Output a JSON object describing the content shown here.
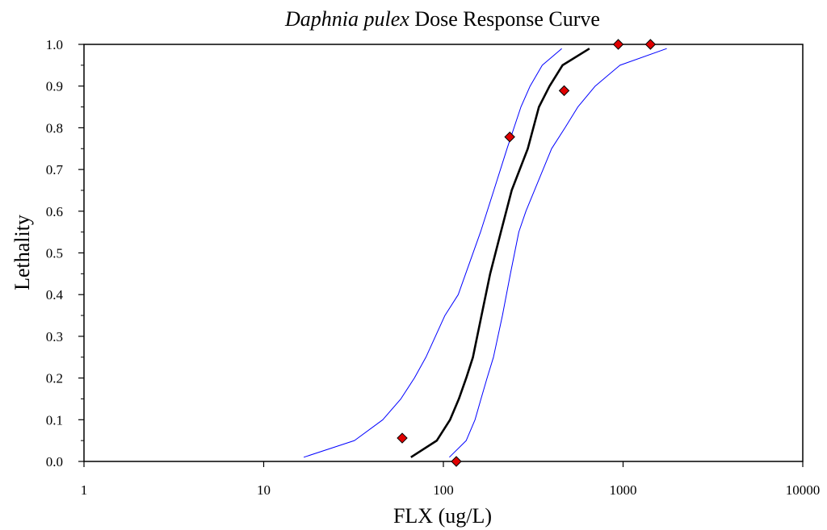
{
  "chart_data": {
    "type": "line",
    "title_italic": "Daphnia pulex",
    "title_rest": " Dose Response Curve",
    "xlabel": "FLX (ug/L)",
    "ylabel": "Lethality",
    "xscale": "log",
    "xlim": [
      1,
      10000
    ],
    "ylim": [
      0.0,
      1.0
    ],
    "grid": false,
    "x_tick_labels": [
      "1",
      "10",
      "100",
      "1000",
      "10000"
    ],
    "x_tick_values": [
      1,
      10,
      100,
      1000,
      10000
    ],
    "y_tick_labels": [
      "0.0",
      "0.1",
      "0.2",
      "0.3",
      "0.4",
      "0.5",
      "0.6",
      "0.7",
      "0.8",
      "0.9",
      "1.0"
    ],
    "y_tick_values": [
      0.0,
      0.1,
      0.2,
      0.3,
      0.4,
      0.5,
      0.6,
      0.7,
      0.8,
      0.9,
      1.0
    ],
    "colors": {
      "fit": "#000000",
      "confidence": "#0000ff",
      "marker_fill": "#e00000",
      "marker_stroke": "#000000"
    },
    "series": [
      {
        "role": "lower-confidence",
        "points": [
          [
            16.7,
            0.01
          ],
          [
            32,
            0.05
          ],
          [
            46,
            0.1
          ],
          [
            58,
            0.15
          ],
          [
            69,
            0.2
          ],
          [
            80,
            0.25
          ],
          [
            102,
            0.35
          ],
          [
            121,
            0.4
          ],
          [
            161,
            0.55
          ],
          [
            191,
            0.65
          ],
          [
            226,
            0.75
          ],
          [
            270,
            0.85
          ],
          [
            304,
            0.9
          ],
          [
            355,
            0.95
          ],
          [
            456,
            0.99
          ]
        ]
      },
      {
        "role": "fit",
        "points": [
          [
            66,
            0.01
          ],
          [
            92,
            0.05
          ],
          [
            109,
            0.1
          ],
          [
            122,
            0.15
          ],
          [
            134,
            0.2
          ],
          [
            146,
            0.25
          ],
          [
            163,
            0.35
          ],
          [
            182,
            0.45
          ],
          [
            209,
            0.55
          ],
          [
            240,
            0.65
          ],
          [
            295,
            0.75
          ],
          [
            340,
            0.85
          ],
          [
            390,
            0.9
          ],
          [
            460,
            0.95
          ],
          [
            650,
            0.99
          ]
        ]
      },
      {
        "role": "upper-confidence",
        "points": [
          [
            108,
            0.01
          ],
          [
            134,
            0.05
          ],
          [
            150,
            0.1
          ],
          [
            162,
            0.15
          ],
          [
            175,
            0.2
          ],
          [
            190,
            0.25
          ],
          [
            213,
            0.35
          ],
          [
            236,
            0.45
          ],
          [
            263,
            0.55
          ],
          [
            288,
            0.6
          ],
          [
            400,
            0.75
          ],
          [
            475,
            0.8
          ],
          [
            560,
            0.85
          ],
          [
            700,
            0.9
          ],
          [
            960,
            0.95
          ],
          [
            1750,
            0.99
          ]
        ]
      }
    ],
    "observed": [
      {
        "x": 59,
        "y": 0.056
      },
      {
        "x": 118,
        "y": 0.0
      },
      {
        "x": 234,
        "y": 0.778
      },
      {
        "x": 470,
        "y": 0.889
      },
      {
        "x": 940,
        "y": 1.0
      },
      {
        "x": 1420,
        "y": 1.0
      }
    ]
  }
}
